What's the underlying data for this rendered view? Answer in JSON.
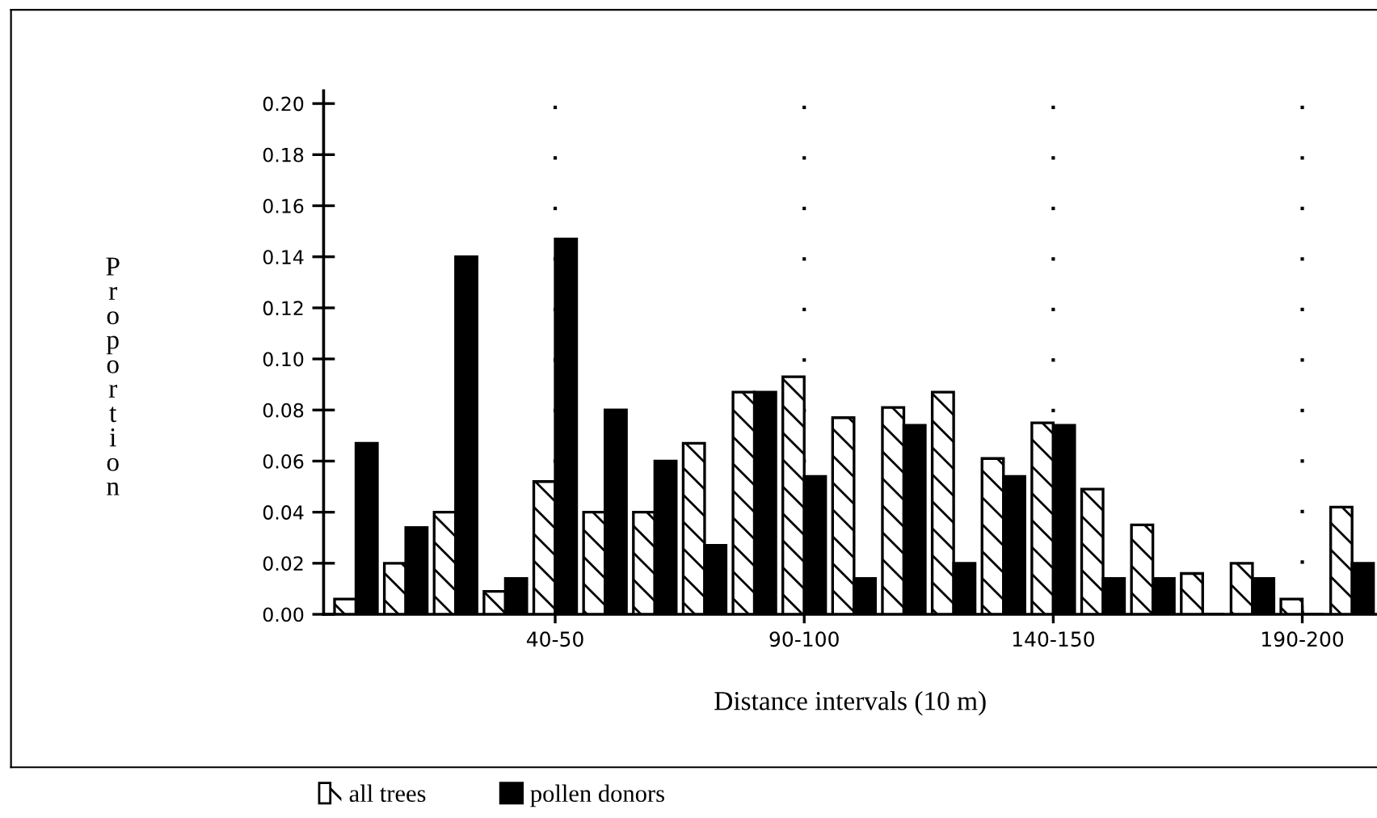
{
  "chart_data": {
    "type": "bar",
    "xlabel": "Distance intervals (10 m)",
    "ylabel": "Proportion",
    "categories": [
      null,
      null,
      null,
      null,
      "40-50",
      null,
      null,
      null,
      null,
      "90-100",
      null,
      null,
      null,
      null,
      "140-150",
      null,
      null,
      null,
      null,
      "190-200",
      null
    ],
    "series": [
      {
        "name": "all trees",
        "color": "#ffffff",
        "values": [
          0.006,
          0.02,
          0.04,
          0.009,
          0.052,
          0.04,
          0.04,
          0.067,
          0.087,
          0.093,
          0.077,
          0.081,
          0.087,
          0.061,
          0.075,
          0.049,
          0.035,
          0.016,
          0.02,
          0.006,
          0.042
        ]
      },
      {
        "name": "pollen donors",
        "color": "#000000",
        "values": [
          0.067,
          0.034,
          0.14,
          0.014,
          0.147,
          0.08,
          0.06,
          0.027,
          0.087,
          0.054,
          0.014,
          0.074,
          0.02,
          0.054,
          0.074,
          0.014,
          0.014,
          0,
          0.014,
          0,
          0.02
        ]
      }
    ],
    "ylim": [
      0,
      0.205
    ],
    "yticks": [
      {
        "value": 0,
        "label": "0.00"
      },
      {
        "value": 0.02,
        "label": "0.02"
      },
      {
        "value": 0.04,
        "label": "0.04"
      },
      {
        "value": 0.06,
        "label": "0.06"
      },
      {
        "value": 0.08,
        "label": "0.08"
      },
      {
        "value": 0.1,
        "label": "0.10"
      },
      {
        "value": 0.12,
        "label": "0.12"
      },
      {
        "value": 0.14,
        "label": "0.14"
      },
      {
        "value": 0.16,
        "label": "0.16"
      },
      {
        "value": 0.18,
        "label": "0.18"
      },
      {
        "value": 0.2,
        "label": "0.20"
      }
    ],
    "grid": "x",
    "legend": "bottom"
  }
}
